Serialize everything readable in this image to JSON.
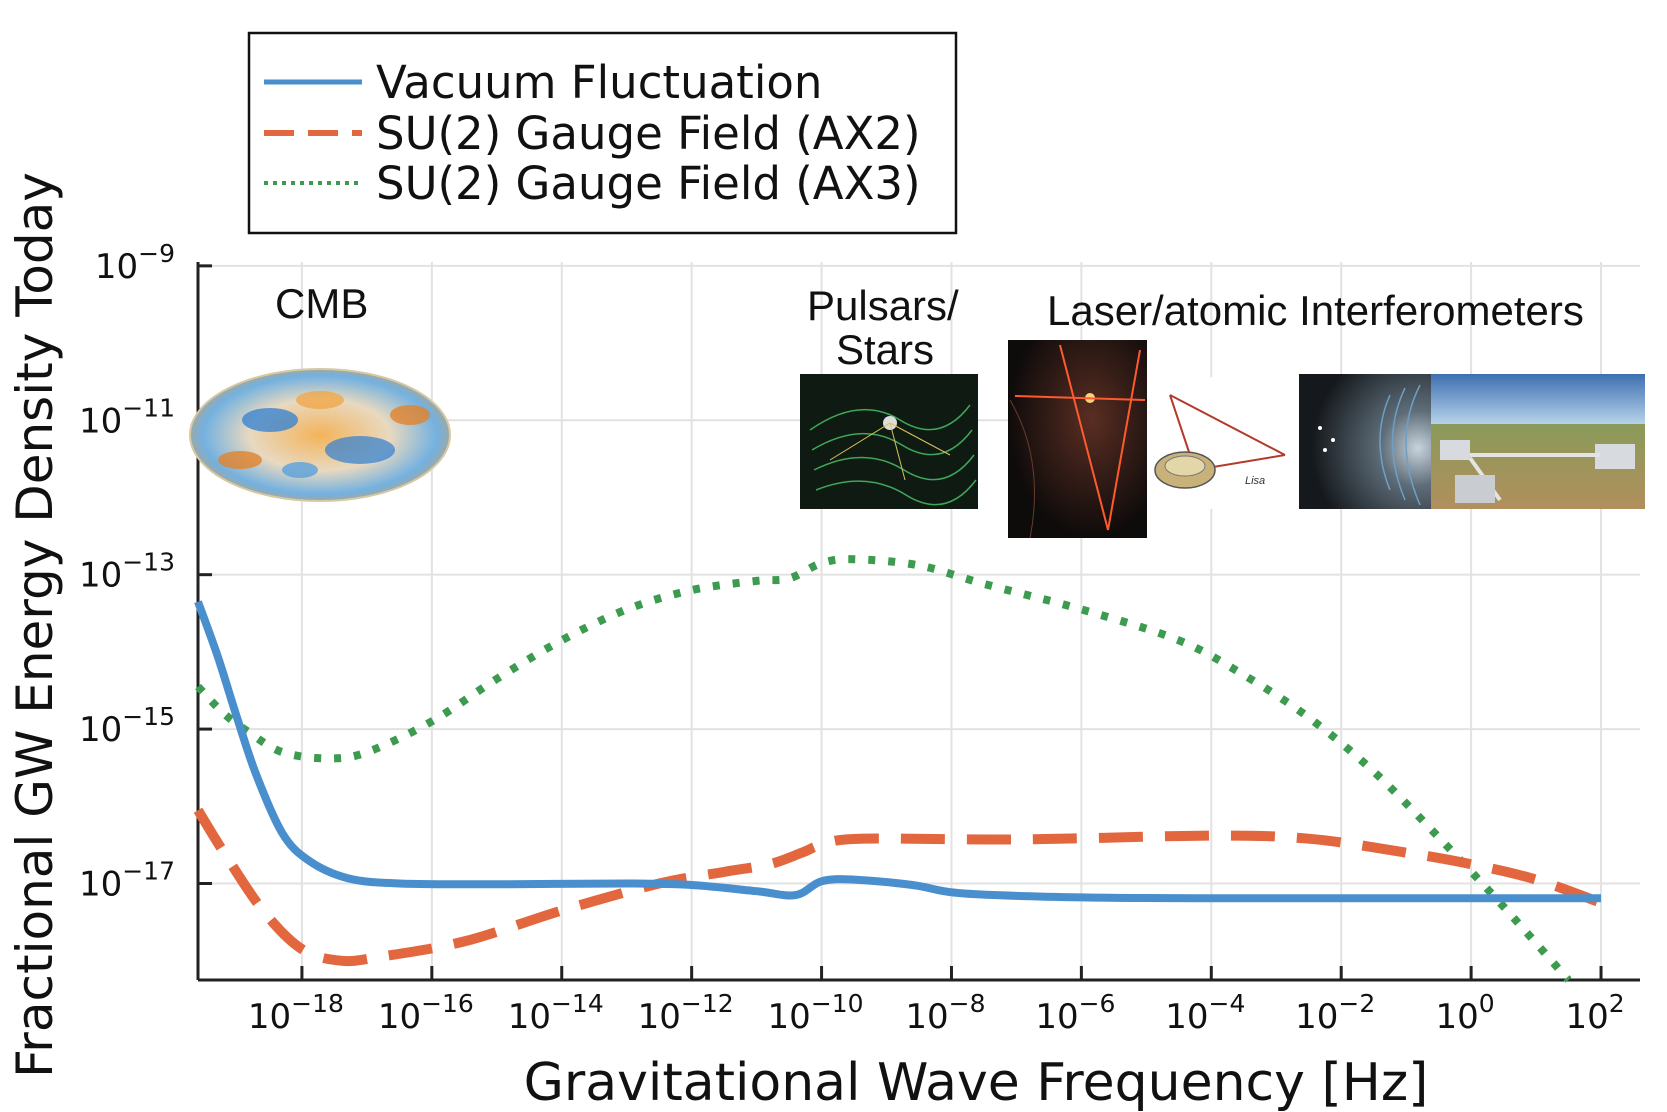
{
  "chart_data": {
    "type": "line",
    "xlabel": "Gravitational Wave Frequency [Hz]",
    "ylabel": "Fractional GW Energy Density Today",
    "x_scale": "log10",
    "y_scale": "log10",
    "xlim_log10": [
      -19.6,
      2.6
    ],
    "ylim_log10": [
      -18.25,
      -8.95
    ],
    "x_ticks": [
      {
        "base": "10",
        "exp": "−18",
        "log": -18
      },
      {
        "base": "10",
        "exp": "−16",
        "log": -16
      },
      {
        "base": "10",
        "exp": "−14",
        "log": -14
      },
      {
        "base": "10",
        "exp": "−12",
        "log": -12
      },
      {
        "base": "10",
        "exp": "−10",
        "log": -10
      },
      {
        "base": "10",
        "exp": "−8",
        "log": -8
      },
      {
        "base": "10",
        "exp": "−6",
        "log": -6
      },
      {
        "base": "10",
        "exp": "−4",
        "log": -4
      },
      {
        "base": "10",
        "exp": "−2",
        "log": -2
      },
      {
        "base": "10",
        "exp": "0",
        "log": 0
      },
      {
        "base": "10",
        "exp": "2",
        "log": 2
      }
    ],
    "y_ticks": [
      {
        "base": "10",
        "exp": "−9",
        "log": -9
      },
      {
        "base": "10",
        "exp": "−11",
        "log": -11
      },
      {
        "base": "10",
        "exp": "−13",
        "log": -13
      },
      {
        "base": "10",
        "exp": "−15",
        "log": -15
      },
      {
        "base": "10",
        "exp": "−17",
        "log": -17
      }
    ],
    "grid": true,
    "legend_position": "top-left",
    "series": [
      {
        "name": "Vacuum Fluctuation",
        "style": "solid",
        "color": "#4a8fcd",
        "points_log10": [
          [
            -19.6,
            -13.35
          ],
          [
            -19.3,
            -14.05
          ],
          [
            -19.0,
            -14.85
          ],
          [
            -18.7,
            -15.6
          ],
          [
            -18.3,
            -16.35
          ],
          [
            -17.9,
            -16.7
          ],
          [
            -17.3,
            -16.93
          ],
          [
            -16.5,
            -17.0
          ],
          [
            -15.0,
            -17.01
          ],
          [
            -13.0,
            -17.0
          ],
          [
            -12.0,
            -17.02
          ],
          [
            -11.0,
            -17.1
          ],
          [
            -10.4,
            -17.15
          ],
          [
            -10.0,
            -16.97
          ],
          [
            -9.5,
            -16.95
          ],
          [
            -8.6,
            -17.02
          ],
          [
            -7.8,
            -17.13
          ],
          [
            -6.0,
            -17.18
          ],
          [
            -4.0,
            -17.19
          ],
          [
            0.0,
            -17.19
          ],
          [
            2.0,
            -17.19
          ]
        ]
      },
      {
        "name": "SU(2) Gauge Field (AX2)",
        "style": "dashed",
        "color": "#e2673f",
        "points_log10": [
          [
            -19.6,
            -16.05
          ],
          [
            -19.2,
            -16.6
          ],
          [
            -18.6,
            -17.35
          ],
          [
            -18.0,
            -17.85
          ],
          [
            -17.4,
            -18.0
          ],
          [
            -16.8,
            -17.95
          ],
          [
            -15.5,
            -17.75
          ],
          [
            -14.0,
            -17.35
          ],
          [
            -12.5,
            -17.0
          ],
          [
            -11.5,
            -16.85
          ],
          [
            -10.8,
            -16.75
          ],
          [
            -10.3,
            -16.6
          ],
          [
            -10.0,
            -16.5
          ],
          [
            -9.4,
            -16.42
          ],
          [
            -7.0,
            -16.43
          ],
          [
            -4.0,
            -16.38
          ],
          [
            -2.5,
            -16.42
          ],
          [
            -1.0,
            -16.6
          ],
          [
            0.0,
            -16.75
          ],
          [
            1.0,
            -16.95
          ],
          [
            2.0,
            -17.25
          ]
        ]
      },
      {
        "name": "SU(2) Gauge Field (AX3)",
        "style": "dotted",
        "color": "#3d9b50",
        "points_log10": [
          [
            -19.6,
            -14.45
          ],
          [
            -19.2,
            -14.8
          ],
          [
            -18.8,
            -15.05
          ],
          [
            -18.3,
            -15.3
          ],
          [
            -17.6,
            -15.38
          ],
          [
            -17.0,
            -15.3
          ],
          [
            -16.0,
            -14.9
          ],
          [
            -15.0,
            -14.35
          ],
          [
            -14.0,
            -13.85
          ],
          [
            -13.0,
            -13.45
          ],
          [
            -12.0,
            -13.2
          ],
          [
            -11.0,
            -13.08
          ],
          [
            -10.5,
            -13.05
          ],
          [
            -10.0,
            -12.85
          ],
          [
            -9.5,
            -12.8
          ],
          [
            -8.5,
            -12.88
          ],
          [
            -7.5,
            -13.12
          ],
          [
            -6.0,
            -13.45
          ],
          [
            -4.5,
            -13.85
          ],
          [
            -3.5,
            -14.3
          ],
          [
            -2.5,
            -14.85
          ],
          [
            -1.5,
            -15.55
          ],
          [
            -0.5,
            -16.4
          ],
          [
            0.5,
            -17.3
          ],
          [
            1.5,
            -18.25
          ]
        ]
      }
    ],
    "annotations": [
      "CMB",
      "Pulsars/",
      "Stars",
      "Laser/atomic Interferometers",
      "Lisa"
    ]
  },
  "colors": {
    "vacuum": "#4a8fcd",
    "ax2": "#e2673f",
    "ax3": "#3d9b50",
    "axis": "#222222",
    "grid": "#e2e2e2"
  }
}
